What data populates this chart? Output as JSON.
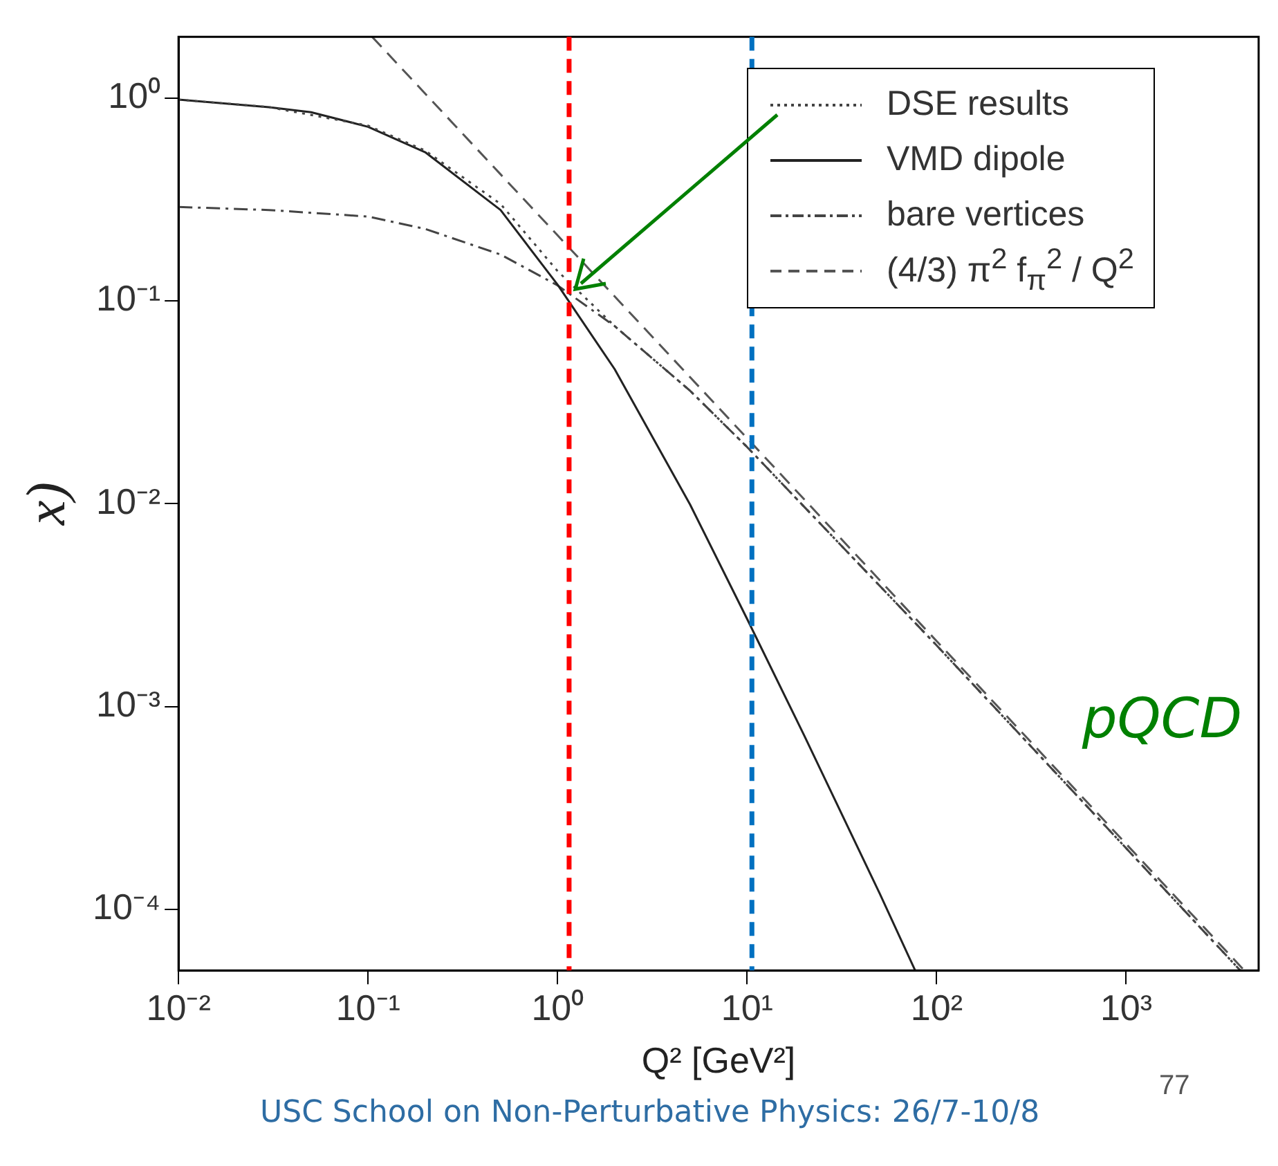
{
  "chart_data": {
    "type": "line",
    "xlabel": "Q² [GeV²]",
    "ylabel": "x)",
    "series": [
      {
        "name": "DSE results",
        "color": "#444444",
        "line_style": "dotted",
        "x": [
          0.01,
          0.03,
          0.1,
          0.2,
          0.5,
          1,
          2,
          5,
          10,
          100,
          1000,
          4000
        ],
        "values": [
          0.98,
          0.9,
          0.73,
          0.55,
          0.3,
          0.14,
          0.075,
          0.036,
          0.019,
          0.002,
          0.0002,
          5e-05
        ]
      },
      {
        "name": "VMD dipole",
        "color": "#222222",
        "line_style": "solid",
        "x": [
          0.01,
          0.03,
          0.05,
          0.1,
          0.2,
          0.5,
          1,
          2,
          5,
          10,
          20,
          50,
          77
        ],
        "values": [
          0.98,
          0.9,
          0.85,
          0.72,
          0.54,
          0.28,
          0.12,
          0.046,
          0.0099,
          0.0027,
          0.00072,
          0.00012,
          5e-05
        ]
      },
      {
        "name": "bare vertices",
        "color": "#444444",
        "line_style": "dashdot",
        "x": [
          0.01,
          0.03,
          0.1,
          0.2,
          0.5,
          1,
          2,
          5,
          10,
          100,
          1000,
          4000
        ],
        "values": [
          0.29,
          0.28,
          0.26,
          0.226,
          0.169,
          0.119,
          0.075,
          0.036,
          0.019,
          0.002,
          0.0002,
          5e-05
        ]
      },
      {
        "name": "(4/3) π$^{2}$ f$_{π}$$^{2}$ / Q$^{2}$",
        "color": "#555555",
        "line_style": "dashed",
        "x": [
          0.105,
          1,
          10,
          100,
          1000,
          4200
        ],
        "values": [
          2,
          0.21,
          0.021,
          0.0021,
          0.00021,
          5e-05
        ]
      }
    ],
    "log": "xy",
    "xlim": [
      0.01,
      5000
    ],
    "xticks": [
      {
        "value": 0.01,
        "label": "10⁻²"
      },
      {
        "value": 0.1,
        "label": "10⁻¹"
      },
      {
        "value": 1,
        "label": "10⁰"
      },
      {
        "value": 10,
        "label": "10¹"
      },
      {
        "value": 100,
        "label": "10²"
      },
      {
        "value": 1000,
        "label": "10³"
      }
    ],
    "ylim": [
      5e-05,
      2
    ],
    "yticks": [
      {
        "value": 0.0001,
        "label": "10⁻⁴"
      },
      {
        "value": 0.001,
        "label": "10⁻³"
      },
      {
        "value": 0.01,
        "label": "10⁻²"
      },
      {
        "value": 0.1,
        "label": "10⁻¹"
      },
      {
        "value": 1,
        "label": "10⁰"
      }
    ],
    "ref_lines": [
      {
        "axis": "x",
        "value": 1.15,
        "color": "#ff0000",
        "line_style": "dashed"
      },
      {
        "axis": "x",
        "value": 10.6,
        "color": "#0070c0",
        "line_style": "dashed"
      }
    ],
    "annotations": [
      "USC School on Non-Perturbative Physics: 26/7-10/8",
      "77",
      "pQCD"
    ],
    "grid": false,
    "legend": "top right"
  }
}
